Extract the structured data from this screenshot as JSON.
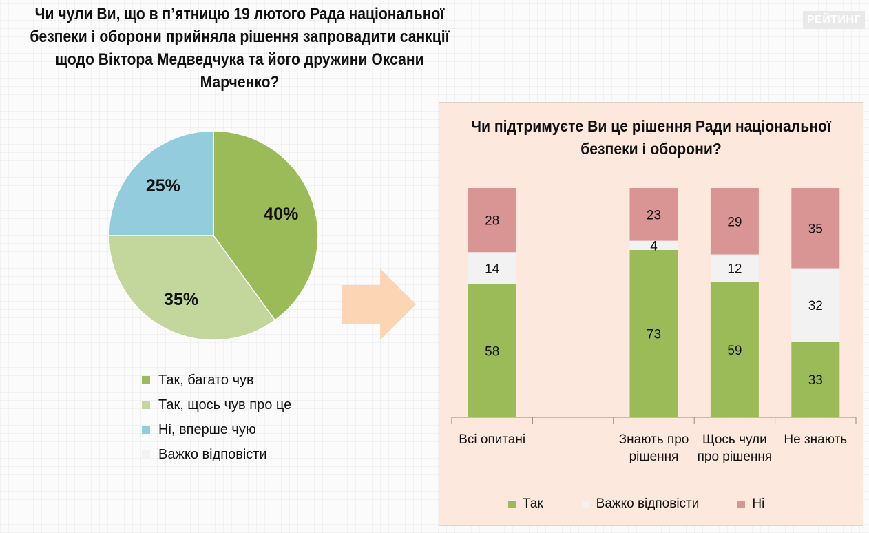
{
  "question": "Чи чули Ви, що в п’ятницю 19 лютого Рада національної безпеки і оборони прийняла рішення запровадити санкції щодо Віктора Медведчука та його дружини Оксани Марченко?",
  "logo_text": "РЕЙТИНГ",
  "colors": {
    "tak": "#9bbb59",
    "tak_light": "#c3d69b",
    "ni_blue": "#93cddd",
    "hard": "#f2f2f2",
    "ni_red": "#d99594",
    "arrow": "#fcd5b5"
  },
  "chart_data": [
    {
      "type": "pie",
      "title": "",
      "slices": [
        {
          "label": "Так, багато чув",
          "value": 40,
          "text": "40%",
          "color": "#9bbb59"
        },
        {
          "label": "Так, щось чув про це",
          "value": 35,
          "text": "35%",
          "color": "#c3d69b"
        },
        {
          "label": "Ні, вперше чую",
          "value": 25,
          "text": "25%",
          "color": "#93cddd"
        },
        {
          "label": "Важко відповісти",
          "value": 0,
          "text": "",
          "color": "#f2f2f2"
        }
      ],
      "legend": [
        "Так, багато чув",
        "Так, щось чув про це",
        "Ні, вперше чую",
        "Важко відповісти"
      ]
    },
    {
      "type": "bar",
      "stacked": true,
      "title": "Чи підтримуєте Ви це рішення Ради національної безпеки і оборони?",
      "categories": [
        "Всі опитані",
        "",
        "Знають про рішення",
        "Щось чули про рішення",
        "Не знають"
      ],
      "category_lines": [
        [
          "Всі опитані"
        ],
        [],
        [
          "Знають про",
          "рішення"
        ],
        [
          "Щось чули",
          "про рішення"
        ],
        [
          "Не знають"
        ]
      ],
      "series": [
        {
          "name": "Так",
          "color": "#9bbb59",
          "values": [
            58,
            null,
            73,
            59,
            33
          ]
        },
        {
          "name": "Важко відповісти",
          "color": "#f2f2f2",
          "values": [
            14,
            null,
            4,
            12,
            32
          ]
        },
        {
          "name": "Ні",
          "color": "#d99594",
          "values": [
            28,
            null,
            23,
            29,
            35
          ]
        }
      ],
      "ylim": [
        0,
        100
      ],
      "legend_position": "bottom",
      "grid": false
    }
  ]
}
